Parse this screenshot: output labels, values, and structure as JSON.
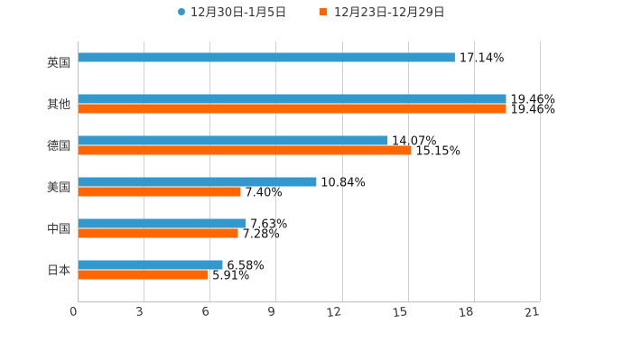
{
  "chart_data": {
    "type": "bar",
    "orientation": "horizontal",
    "title": "",
    "xlabel": "",
    "ylabel": "",
    "categories": [
      "英国",
      "其他",
      "德国",
      "美国",
      "中国",
      "日本"
    ],
    "series": [
      {
        "name": "12月30日-1月5日",
        "color": "#3399cc",
        "values": [
          17.14,
          19.46,
          14.07,
          10.84,
          7.63,
          6.58
        ],
        "labels": [
          "17.14%",
          "19.46%",
          "14.07%",
          "10.84%",
          "7.63%",
          "6.58%"
        ]
      },
      {
        "name": "12月23日-12月29日",
        "color": "#ff6600",
        "values": [
          null,
          19.46,
          15.15,
          7.4,
          7.28,
          5.91
        ],
        "labels": [
          "",
          "19.46%",
          "15.15%",
          "7.40%",
          "7.28%",
          "5.91%"
        ]
      }
    ],
    "xlim": [
      0,
      21
    ],
    "xticks": [
      "0",
      "3",
      "6",
      "9",
      "12",
      "15",
      "18",
      "21"
    ],
    "grid": true,
    "legend_position": "top-center"
  }
}
